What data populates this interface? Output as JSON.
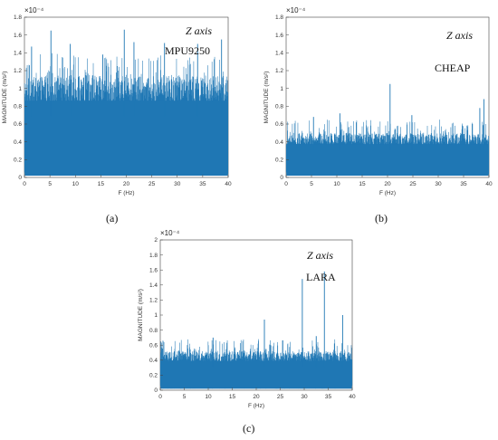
{
  "chart_data": [
    {
      "type": "line",
      "panel_label": "(a)",
      "annotation_axis": "Z axis",
      "annotation_name": "MPU9250",
      "xlabel": "F (Hz)",
      "ylabel": "MAGNITUDE (m/s²)",
      "y_exponent": "×10⁻⁴",
      "xlim": [
        0,
        40
      ],
      "ylim": [
        0,
        1.8
      ],
      "xticks": [
        "0",
        "5",
        "10",
        "15",
        "20",
        "25",
        "30",
        "35",
        "40"
      ],
      "yticks": [
        "0",
        "0.2",
        "0.4",
        "0.6",
        "0.8",
        "1",
        "1.2",
        "1.4",
        "1.6",
        "1.8"
      ],
      "color": "#1f77b4",
      "envelope": {
        "floor": 0.02,
        "typical_max": 1.15,
        "noise_max": 1.4
      },
      "peaks": [
        {
          "x": 5.2,
          "y": 1.65
        },
        {
          "x": 19.6,
          "y": 1.66
        },
        {
          "x": 21.5,
          "y": 1.52
        },
        {
          "x": 27.5,
          "y": 1.51
        },
        {
          "x": 9.0,
          "y": 1.5
        },
        {
          "x": 38.7,
          "y": 1.55
        },
        {
          "x": 34.0,
          "y": 1.5
        },
        {
          "x": 1.4,
          "y": 1.47
        }
      ]
    },
    {
      "type": "line",
      "panel_label": "(b)",
      "annotation_axis": "Z axis",
      "annotation_name": "CHEAP",
      "xlabel": "F (Hz)",
      "ylabel": "MAGNITUDE (m/s²)",
      "y_exponent": "×10⁻⁴",
      "xlim": [
        0,
        40
      ],
      "ylim": [
        0,
        1.8
      ],
      "xticks": [
        "0",
        "5",
        "10",
        "15",
        "20",
        "25",
        "30",
        "35",
        "40"
      ],
      "yticks": [
        "0",
        "0.2",
        "0.4",
        "0.6",
        "0.8",
        "1",
        "1.2",
        "1.4",
        "1.6",
        "1.8"
      ],
      "color": "#1f77b4",
      "envelope": {
        "floor": 0.02,
        "typical_max": 0.5,
        "noise_max": 0.65
      },
      "peaks": [
        {
          "x": 20.5,
          "y": 1.05
        },
        {
          "x": 39.0,
          "y": 0.88
        },
        {
          "x": 38.2,
          "y": 0.78
        },
        {
          "x": 10.6,
          "y": 0.72
        },
        {
          "x": 24.8,
          "y": 0.7
        },
        {
          "x": 5.4,
          "y": 0.68
        }
      ]
    },
    {
      "type": "line",
      "panel_label": "(c)",
      "annotation_axis": "Z axis",
      "annotation_name": "LARA",
      "xlabel": "F (Hz)",
      "ylabel": "MAGNITUDE (m/s²)",
      "y_exponent": "×10⁻⁴",
      "xlim": [
        0,
        40
      ],
      "ylim": [
        0,
        2
      ],
      "xticks": [
        "0",
        "5",
        "10",
        "15",
        "20",
        "25",
        "30",
        "35",
        "40"
      ],
      "yticks": [
        "0",
        "0.2",
        "0.4",
        "0.6",
        "0.8",
        "1",
        "1.2",
        "1.4",
        "1.6",
        "1.8",
        "2"
      ],
      "color": "#1f77b4",
      "envelope": {
        "floor": 0.02,
        "typical_max": 0.52,
        "noise_max": 0.68
      },
      "peaks": [
        {
          "x": 34.2,
          "y": 1.58
        },
        {
          "x": 29.6,
          "y": 1.48
        },
        {
          "x": 38.0,
          "y": 1.0
        },
        {
          "x": 21.7,
          "y": 0.94
        },
        {
          "x": 32.5,
          "y": 0.72
        },
        {
          "x": 11.0,
          "y": 0.7
        }
      ]
    }
  ]
}
